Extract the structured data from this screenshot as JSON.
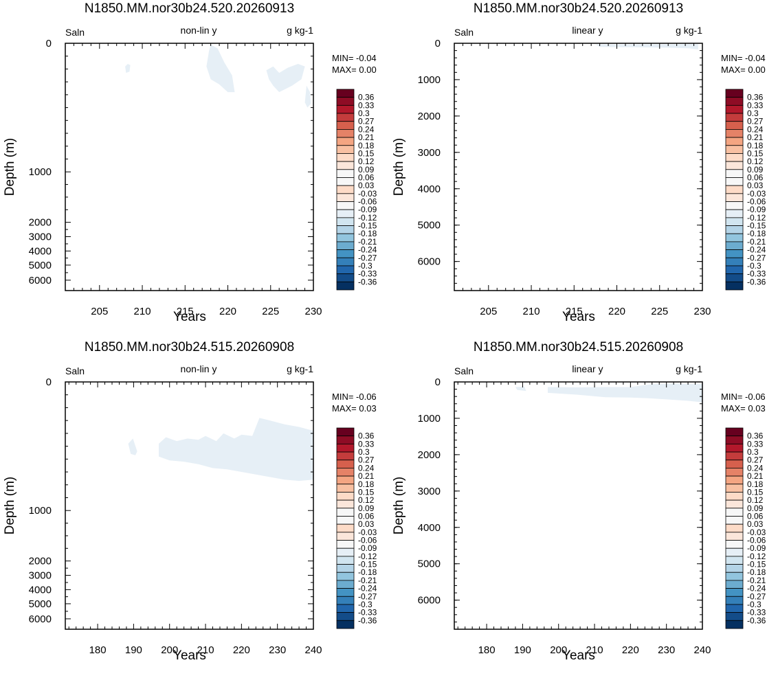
{
  "colorbar": {
    "labels": [
      "0.36",
      "0.33",
      "0.3",
      "0.27",
      "0.24",
      "0.21",
      "0.18",
      "0.15",
      "0.12",
      "0.09",
      "0.06",
      "0.03",
      "-0.03",
      "-0.06",
      "-0.09",
      "-0.12",
      "-0.15",
      "-0.18",
      "-0.21",
      "-0.24",
      "-0.27",
      "-0.3",
      "-0.33",
      "-0.36"
    ],
    "colors": [
      "#67001f",
      "#8e0c25",
      "#b2182b",
      "#c43c3c",
      "#d6604d",
      "#e58267",
      "#f4a582",
      "#f8c0a2",
      "#fddbc7",
      "#fbe6da",
      "#f7f7f7",
      "#e6eff6",
      "#d1e5f0",
      "#b4d4e7",
      "#92c5de",
      "#6caccf",
      "#4393c3",
      "#3480b9",
      "#2166ac",
      "#134c89",
      "#053061"
    ],
    "boxes": 25
  },
  "chart_data": [
    {
      "type": "heatmap",
      "title": "N1850.MM.nor30b24.520.20260913",
      "left_label": "Saln",
      "center_label": "non-lin y",
      "right_label": "g kg-1",
      "xlabel": "Years",
      "ylabel": "Depth (m)",
      "xlim": [
        201,
        230
      ],
      "xticks": [
        "205",
        "210",
        "215",
        "220",
        "225",
        "230"
      ],
      "y_scale": "non-linear",
      "ylim": [
        0,
        6500
      ],
      "yticks": [
        "0",
        "1000",
        "2000",
        "3000",
        "4000",
        "5000",
        "6000"
      ],
      "min_text": "MIN= -0.04",
      "max_text": "MAX=  0.00",
      "fill_color": "#e6eff6",
      "regions": [
        [
          [
            208.0,
            180
          ],
          [
            208.3,
            160
          ],
          [
            208.6,
            170
          ],
          [
            208.5,
            220
          ],
          [
            208.1,
            230
          ],
          [
            208.0,
            180
          ]
        ],
        [
          [
            218.0,
            10
          ],
          [
            218.8,
            40
          ],
          [
            219.6,
            150
          ],
          [
            220.5,
            250
          ],
          [
            220.8,
            380
          ],
          [
            220.0,
            380
          ],
          [
            219.0,
            320
          ],
          [
            218.0,
            280
          ],
          [
            217.5,
            180
          ],
          [
            217.8,
            60
          ],
          [
            218.0,
            10
          ]
        ],
        [
          [
            224.5,
            210
          ],
          [
            225.3,
            180
          ],
          [
            226.0,
            230
          ],
          [
            227.0,
            190
          ],
          [
            228.2,
            160
          ],
          [
            229.0,
            180
          ],
          [
            228.6,
            280
          ],
          [
            227.5,
            330
          ],
          [
            226.0,
            380
          ],
          [
            225.3,
            330
          ],
          [
            224.8,
            280
          ],
          [
            224.5,
            210
          ]
        ],
        [
          [
            229.2,
            330
          ],
          [
            229.6,
            380
          ],
          [
            229.7,
            470
          ],
          [
            229.3,
            500
          ],
          [
            229.0,
            460
          ],
          [
            229.2,
            330
          ]
        ]
      ]
    },
    {
      "type": "heatmap",
      "title": "N1850.MM.nor30b24.520.20260913",
      "left_label": "Saln",
      "center_label": "linear y",
      "right_label": "g kg-1",
      "xlabel": "Years",
      "ylabel": "Depth (m)",
      "xlim": [
        201,
        230
      ],
      "xticks": [
        "205",
        "210",
        "215",
        "220",
        "225",
        "230"
      ],
      "y_scale": "linear",
      "ylim": [
        0,
        6800
      ],
      "yticks": [
        "0",
        "1000",
        "2000",
        "3000",
        "4000",
        "5000",
        "6000"
      ],
      "min_text": "MIN= -0.04",
      "max_text": "MAX=  0.00",
      "fill_color": "#e6eff6",
      "regions": [
        [
          [
            217.5,
            30
          ],
          [
            223,
            30
          ],
          [
            229.5,
            20
          ],
          [
            229.5,
            170
          ],
          [
            228.5,
            140
          ],
          [
            226,
            120
          ],
          [
            222,
            110
          ],
          [
            218,
            100
          ],
          [
            217.5,
            30
          ]
        ]
      ]
    },
    {
      "type": "heatmap",
      "title": "N1850.MM.nor30b24.515.20260908",
      "left_label": "Saln",
      "center_label": "non-lin y",
      "right_label": "g kg-1",
      "xlabel": "Years",
      "ylabel": "Depth (m)",
      "xlim": [
        171,
        240
      ],
      "xticks": [
        "180",
        "190",
        "200",
        "210",
        "220",
        "230",
        "240"
      ],
      "y_scale": "non-linear",
      "ylim": [
        0,
        6500
      ],
      "yticks": [
        "0",
        "1000",
        "2000",
        "3000",
        "4000",
        "5000",
        "6000"
      ],
      "min_text": "MIN= -0.06",
      "max_text": "MAX=  0.03",
      "fill_color": "#e6eff6",
      "regions": [
        [
          [
            188.5,
            480
          ],
          [
            189.8,
            440
          ],
          [
            191,
            540
          ],
          [
            190.5,
            570
          ],
          [
            189.2,
            560
          ],
          [
            188.5,
            480
          ]
        ],
        [
          [
            197,
            480
          ],
          [
            199,
            430
          ],
          [
            202,
            460
          ],
          [
            205,
            440
          ],
          [
            208,
            450
          ],
          [
            210,
            420
          ],
          [
            213,
            460
          ],
          [
            215,
            400
          ],
          [
            218,
            440
          ],
          [
            220,
            410
          ],
          [
            223,
            420
          ],
          [
            225,
            280
          ],
          [
            228,
            300
          ],
          [
            232,
            330
          ],
          [
            236,
            350
          ],
          [
            240,
            380
          ],
          [
            240,
            760
          ],
          [
            236,
            770
          ],
          [
            232,
            760
          ],
          [
            228,
            740
          ],
          [
            224,
            720
          ],
          [
            220,
            700
          ],
          [
            216,
            680
          ],
          [
            212,
            670
          ],
          [
            208,
            640
          ],
          [
            204,
            620
          ],
          [
            200,
            610
          ],
          [
            197,
            580
          ],
          [
            197,
            480
          ]
        ]
      ]
    },
    {
      "type": "heatmap",
      "title": "N1850.MM.nor30b24.515.20260908",
      "left_label": "Saln",
      "center_label": "linear y",
      "right_label": "g kg-1",
      "xlabel": "Years",
      "ylabel": "Depth (m)",
      "xlim": [
        171,
        240
      ],
      "xticks": [
        "180",
        "190",
        "200",
        "210",
        "220",
        "230",
        "240"
      ],
      "y_scale": "linear",
      "ylim": [
        0,
        6800
      ],
      "yticks": [
        "0",
        "1000",
        "2000",
        "3000",
        "4000",
        "5000",
        "6000"
      ],
      "min_text": "MIN= -0.06",
      "max_text": "MAX=  0.03",
      "fill_color": "#e6eff6",
      "regions": [
        [
          [
            188,
            140
          ],
          [
            190.5,
            130
          ],
          [
            191,
            250
          ],
          [
            188.5,
            220
          ],
          [
            188,
            140
          ]
        ],
        [
          [
            197,
            140
          ],
          [
            205,
            150
          ],
          [
            213,
            140
          ],
          [
            220,
            140
          ],
          [
            226,
            60
          ],
          [
            232,
            40
          ],
          [
            240,
            60
          ],
          [
            240,
            560
          ],
          [
            236,
            520
          ],
          [
            230,
            480
          ],
          [
            225,
            450
          ],
          [
            220,
            430
          ],
          [
            213,
            420
          ],
          [
            205,
            350
          ],
          [
            197,
            300
          ],
          [
            197,
            140
          ]
        ]
      ]
    }
  ]
}
